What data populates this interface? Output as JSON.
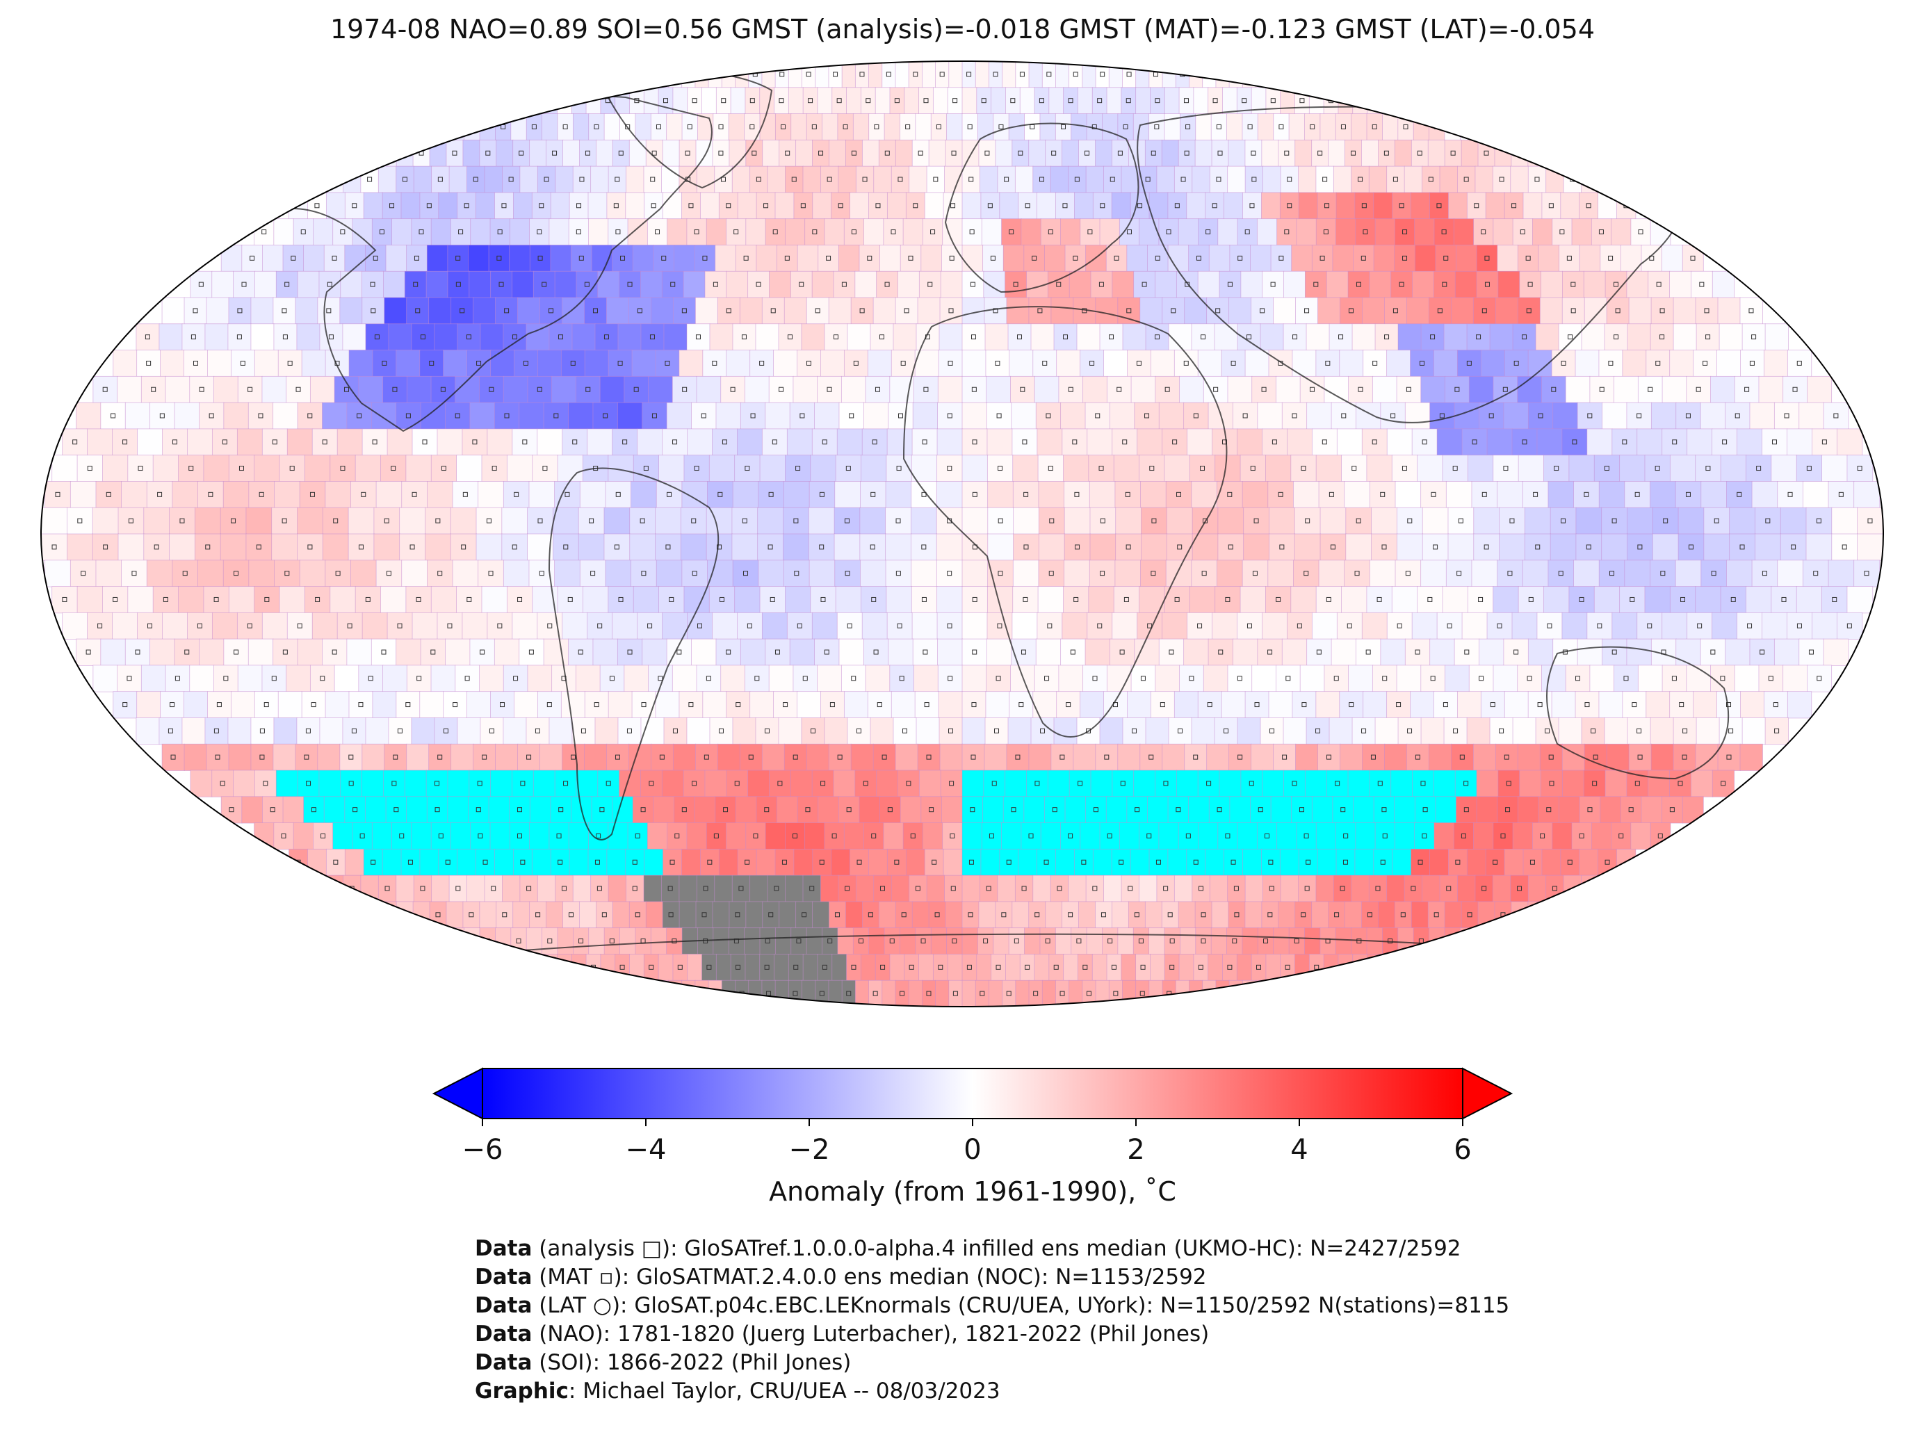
{
  "title": "1974-08 NAO=0.89 SOI=0.56 GMST (analysis)=-0.018 GMST (MAT)=-0.123 GMST (LAT)=-0.054",
  "colorbar": {
    "ticks": [
      "−6",
      "−4",
      "−2",
      "0",
      "2",
      "4",
      "6"
    ],
    "tick_values": [
      -6,
      -4,
      -2,
      0,
      2,
      4,
      6
    ],
    "vmin": -6,
    "vmax": 6,
    "label": "Anomaly (from 1961-1990), ˚C",
    "colors": {
      "min": "#0000ff",
      "mid": "#ffffff",
      "max": "#ff0000"
    }
  },
  "map": {
    "projection": "Robinson",
    "grid": "5x5 degree",
    "ocean_gap_color": "#00ffff",
    "no_data_land_color": "#808080"
  },
  "caption": [
    {
      "bold": "Data",
      "text": " (analysis □): GloSATref.1.0.0.0-alpha.4 infilled ens median (UKMO-HC): N=2427/2592"
    },
    {
      "bold": "Data",
      "text": " (MAT ▫): GloSATMAT.2.4.0.0 ens median (NOC): N=1153/2592"
    },
    {
      "bold": "Data",
      "text": " (LAT ○): GloSAT.p04c.EBC.LEKnormals (CRU/UEA, UYork): N=1150/2592 N(stations)=8115"
    },
    {
      "bold": "Data",
      "text": " (NAO): 1781-1820 (Juerg Luterbacher), 1821-2022 (Phil Jones)"
    },
    {
      "bold": "Data",
      "text": " (SOI): 1866-2022 (Phil Jones)"
    },
    {
      "bold": "Graphic",
      "text": ": Michael Taylor, CRU/UEA -- 08/03/2023"
    }
  ]
}
